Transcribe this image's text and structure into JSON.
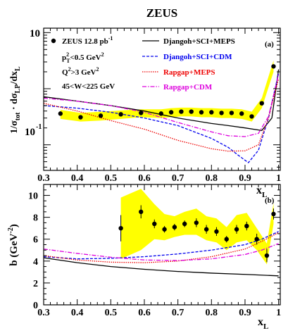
{
  "title": "ZEUS",
  "colors": {
    "band": "#ffff00",
    "axis": "#000000",
    "djangoh_meps": "#000000",
    "djangoh_cdm": "#0000ee",
    "rapgap_meps": "#ee0000",
    "rapgap_cdm": "#dd00dd"
  },
  "panel_a": {
    "tag": "(a)",
    "ylabel": "1/σ_tot · dσ_LP/dx_L",
    "ylabel_parts": {
      "a": "1/σ",
      "a_sub": "tot",
      "b": " · dσ",
      "b_sub": "LP",
      "c": "/dx",
      "c_sub": "L"
    },
    "legend": {
      "data": "ZEUS 12.8 pb",
      "data_sup": "-1",
      "cut_pt": "p",
      "cut_pt_sub": "T",
      "cut_pt_sup": "2",
      "cut_pt_rest": "<0.5 GeV",
      "cut_pt_rest_sup": "2",
      "cut_q2": "Q",
      "cut_q2_sup": "2",
      "cut_q2_rest": ">3 GeV",
      "cut_q2_rest_sup": "2",
      "cut_w": "45<W<225 GeV",
      "djangoh_meps": "Djangoh+SCI+MEPS",
      "djangoh_cdm": "Djangoh+SCI+CDM",
      "rapgap_meps": "Rapgap+MEPS",
      "rapgap_cdm": "Rapgap+CDM"
    },
    "ytick_labels": {
      "10": "10",
      "1e-1_base": "10",
      "1e-1_exp": "-1"
    }
  },
  "panel_b": {
    "tag": "(b)",
    "ylabel": "b (GeV⁻²)",
    "ylabel_parts": {
      "a": "b (GeV",
      "sup": "-2",
      "b": ")"
    }
  },
  "xlabel": {
    "base": "x",
    "sub": "L"
  },
  "chart_data": [
    {
      "type": "scatter",
      "panel": "a",
      "yscale": "log",
      "xlim": [
        0.3,
        1.005
      ],
      "ylim": [
        0.035,
        12
      ],
      "x_ticks": [
        0.3,
        0.4,
        0.5,
        0.6,
        0.7,
        0.8,
        0.9,
        1.0
      ],
      "x_tick_labels": [
        "0.3",
        "0.4",
        "0.5",
        "0.6",
        "0.7",
        "0.8",
        "0.9",
        "1"
      ],
      "series": [
        {
          "name": "ZEUS 12.8 pb-1",
          "kind": "points",
          "x": [
            0.35,
            0.41,
            0.47,
            0.53,
            0.59,
            0.65,
            0.68,
            0.71,
            0.74,
            0.77,
            0.8,
            0.83,
            0.86,
            0.89,
            0.92,
            0.95,
            0.985
          ],
          "y": [
            0.36,
            0.31,
            0.33,
            0.35,
            0.37,
            0.36,
            0.38,
            0.39,
            0.39,
            0.38,
            0.38,
            0.37,
            0.37,
            0.36,
            0.32,
            0.55,
            2.5
          ],
          "band_lo": [
            0.29,
            0.26,
            0.27,
            0.29,
            0.31,
            0.3,
            0.31,
            0.32,
            0.32,
            0.31,
            0.31,
            0.3,
            0.3,
            0.29,
            0.26,
            0.45,
            2.0
          ],
          "band_hi": [
            0.42,
            0.37,
            0.39,
            0.41,
            0.43,
            0.43,
            0.45,
            0.46,
            0.46,
            0.45,
            0.45,
            0.44,
            0.44,
            0.43,
            0.39,
            0.68,
            3.2
          ]
        },
        {
          "name": "Djangoh+SCI+MEPS",
          "kind": "line",
          "style": "solid",
          "x": [
            0.3,
            0.4,
            0.5,
            0.6,
            0.7,
            0.8,
            0.85,
            0.9,
            0.95,
            0.98,
            1.0
          ],
          "y": [
            0.72,
            0.6,
            0.5,
            0.4,
            0.3,
            0.24,
            0.22,
            0.2,
            0.18,
            0.3,
            2.2
          ]
        },
        {
          "name": "Djangoh+SCI+CDM",
          "kind": "line",
          "style": "dashed",
          "x": [
            0.3,
            0.4,
            0.5,
            0.6,
            0.7,
            0.8,
            0.85,
            0.88,
            0.91,
            0.94,
            0.97,
            1.0
          ],
          "y": [
            0.5,
            0.45,
            0.38,
            0.3,
            0.22,
            0.13,
            0.09,
            0.065,
            0.048,
            0.08,
            0.3,
            1.9
          ]
        },
        {
          "name": "Rapgap+MEPS",
          "kind": "line",
          "style": "dotted",
          "x": [
            0.3,
            0.4,
            0.5,
            0.6,
            0.7,
            0.8,
            0.85,
            0.9,
            0.94,
            0.97,
            1.0
          ],
          "y": [
            0.55,
            0.4,
            0.27,
            0.19,
            0.12,
            0.085,
            0.077,
            0.078,
            0.1,
            0.3,
            1.5
          ]
        },
        {
          "name": "Rapgap+CDM",
          "kind": "line",
          "style": "dashdot",
          "x": [
            0.3,
            0.4,
            0.5,
            0.6,
            0.7,
            0.8,
            0.85,
            0.9,
            0.94,
            0.97,
            1.0
          ],
          "y": [
            0.68,
            0.6,
            0.5,
            0.38,
            0.25,
            0.17,
            0.145,
            0.14,
            0.16,
            0.32,
            1.8
          ]
        }
      ]
    },
    {
      "type": "scatter",
      "panel": "b",
      "yscale": "linear",
      "xlim": [
        0.3,
        1.005
      ],
      "ylim": [
        0,
        11
      ],
      "x_ticks": [
        0.3,
        0.4,
        0.5,
        0.6,
        0.7,
        0.8,
        0.9,
        1.0
      ],
      "x_tick_labels": [
        "0.3",
        "0.4",
        "0.5",
        "0.6",
        "0.7",
        "0.8",
        "0.9",
        "1"
      ],
      "y_ticks": [
        0,
        2,
        4,
        6,
        8,
        10
      ],
      "y_tick_labels": [
        "0",
        "2",
        "4",
        "6",
        "8",
        "10"
      ],
      "series": [
        {
          "name": "ZEUS 12.8 pb-1",
          "kind": "points",
          "x": [
            0.53,
            0.59,
            0.63,
            0.66,
            0.69,
            0.72,
            0.755,
            0.785,
            0.815,
            0.845,
            0.875,
            0.905,
            0.935,
            0.965,
            0.985
          ],
          "y": [
            7.0,
            8.5,
            7.4,
            6.9,
            7.1,
            7.4,
            7.5,
            6.9,
            6.7,
            6.0,
            6.9,
            7.2,
            6.0,
            4.5,
            8.3
          ],
          "err": [
            1.2,
            0.6,
            0.4,
            0.3,
            0.3,
            0.3,
            0.4,
            0.4,
            0.4,
            0.3,
            0.4,
            0.4,
            0.5,
            0.6,
            0.5
          ],
          "band_lo": [
            4.2,
            5.0,
            6.0,
            5.9,
            6.2,
            6.4,
            6.4,
            5.9,
            5.7,
            5.0,
            5.7,
            5.9,
            5.0,
            3.7,
            7.4
          ],
          "band_hi": [
            9.8,
            10.6,
            9.2,
            8.3,
            8.1,
            8.5,
            8.8,
            8.1,
            7.9,
            7.1,
            8.2,
            8.4,
            7.0,
            5.6,
            9.3
          ]
        },
        {
          "name": "Djangoh+SCI+MEPS",
          "kind": "line",
          "style": "solid",
          "x": [
            0.3,
            0.4,
            0.5,
            0.6,
            0.7,
            0.8,
            0.9,
            1.0
          ],
          "y": [
            4.3,
            3.85,
            3.5,
            3.25,
            3.05,
            2.9,
            2.78,
            2.65
          ]
        },
        {
          "name": "Djangoh+SCI+CDM",
          "kind": "line",
          "style": "dashed",
          "x": [
            0.3,
            0.4,
            0.5,
            0.6,
            0.7,
            0.8,
            0.9,
            0.95,
            1.0
          ],
          "y": [
            4.4,
            4.2,
            4.25,
            4.4,
            4.65,
            5.0,
            5.5,
            6.0,
            6.7
          ]
        },
        {
          "name": "Rapgap+MEPS",
          "kind": "line",
          "style": "dotted",
          "x": [
            0.3,
            0.4,
            0.5,
            0.6,
            0.7,
            0.8,
            0.9,
            0.95,
            1.0
          ],
          "y": [
            4.5,
            4.1,
            3.9,
            3.85,
            4.0,
            4.4,
            5.1,
            5.8,
            6.6
          ]
        },
        {
          "name": "Rapgap+CDM",
          "kind": "line",
          "style": "dashdot",
          "x": [
            0.3,
            0.4,
            0.5,
            0.6,
            0.7,
            0.8,
            0.9,
            0.95,
            1.0
          ],
          "y": [
            5.1,
            4.7,
            4.35,
            4.1,
            4.05,
            4.2,
            4.6,
            5.0,
            5.6
          ]
        }
      ]
    }
  ]
}
